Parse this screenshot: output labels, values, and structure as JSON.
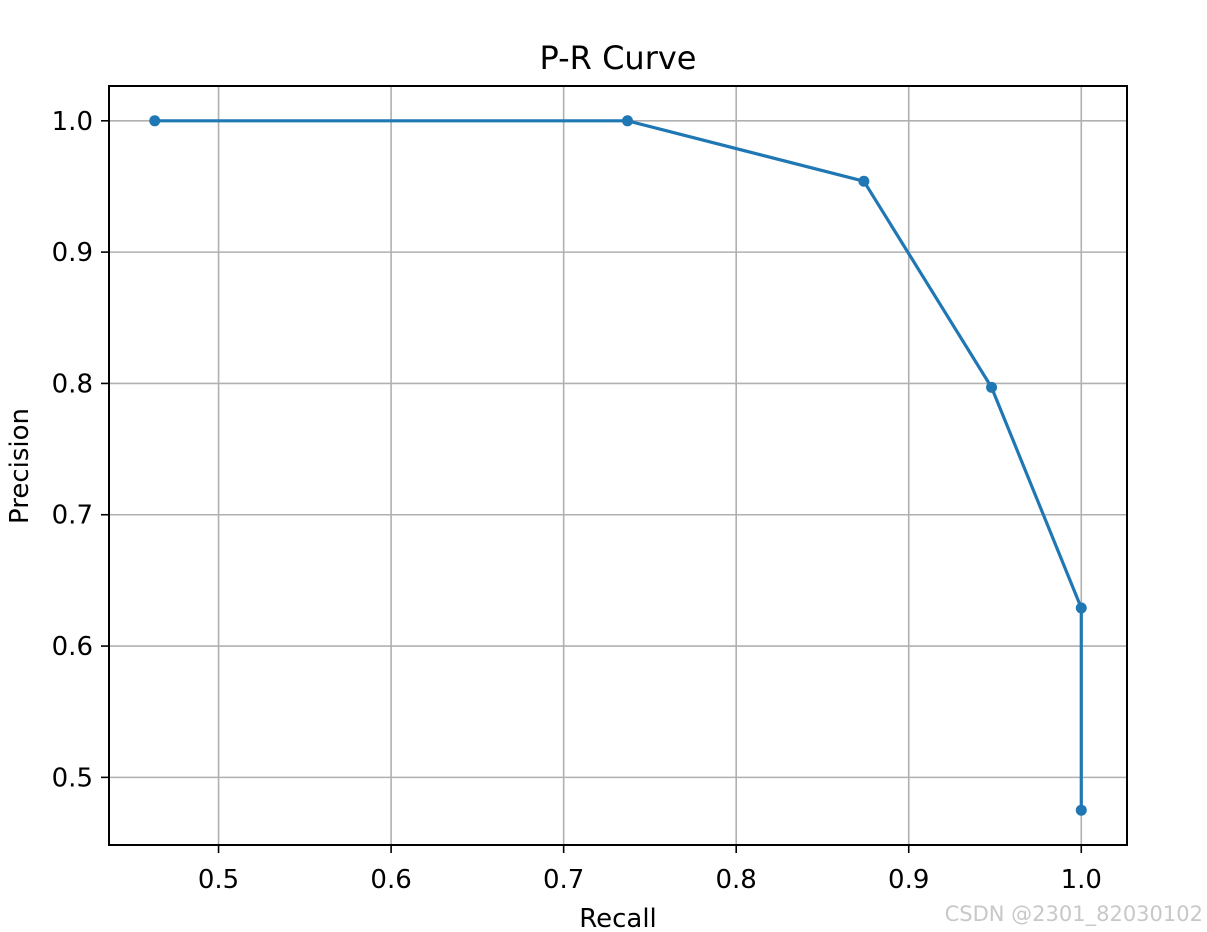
{
  "chart_data": {
    "type": "line",
    "title": "P-R Curve",
    "xlabel": "Recall",
    "ylabel": "Precision",
    "xlim": [
      0.4365,
      1.0265
    ],
    "ylim": [
      0.4485,
      1.0265
    ],
    "xticks": [
      0.5,
      0.6,
      0.7,
      0.8,
      0.9,
      1.0
    ],
    "xtick_labels": [
      "0.5",
      "0.6",
      "0.7",
      "0.8",
      "0.9",
      "1.0"
    ],
    "yticks": [
      0.5,
      0.6,
      0.7,
      0.8,
      0.9,
      1.0
    ],
    "ytick_labels": [
      "0.5",
      "0.6",
      "0.7",
      "0.8",
      "0.9",
      "1.0"
    ],
    "grid": true,
    "series": [
      {
        "x": [
          0.463,
          0.737,
          0.874,
          0.948,
          1.0,
          1.0
        ],
        "y": [
          1.0,
          1.0,
          0.954,
          0.797,
          0.629,
          0.475
        ],
        "color": "#1f77b4",
        "marker": "circle"
      }
    ]
  },
  "watermark": "CSDN @2301_82030102"
}
